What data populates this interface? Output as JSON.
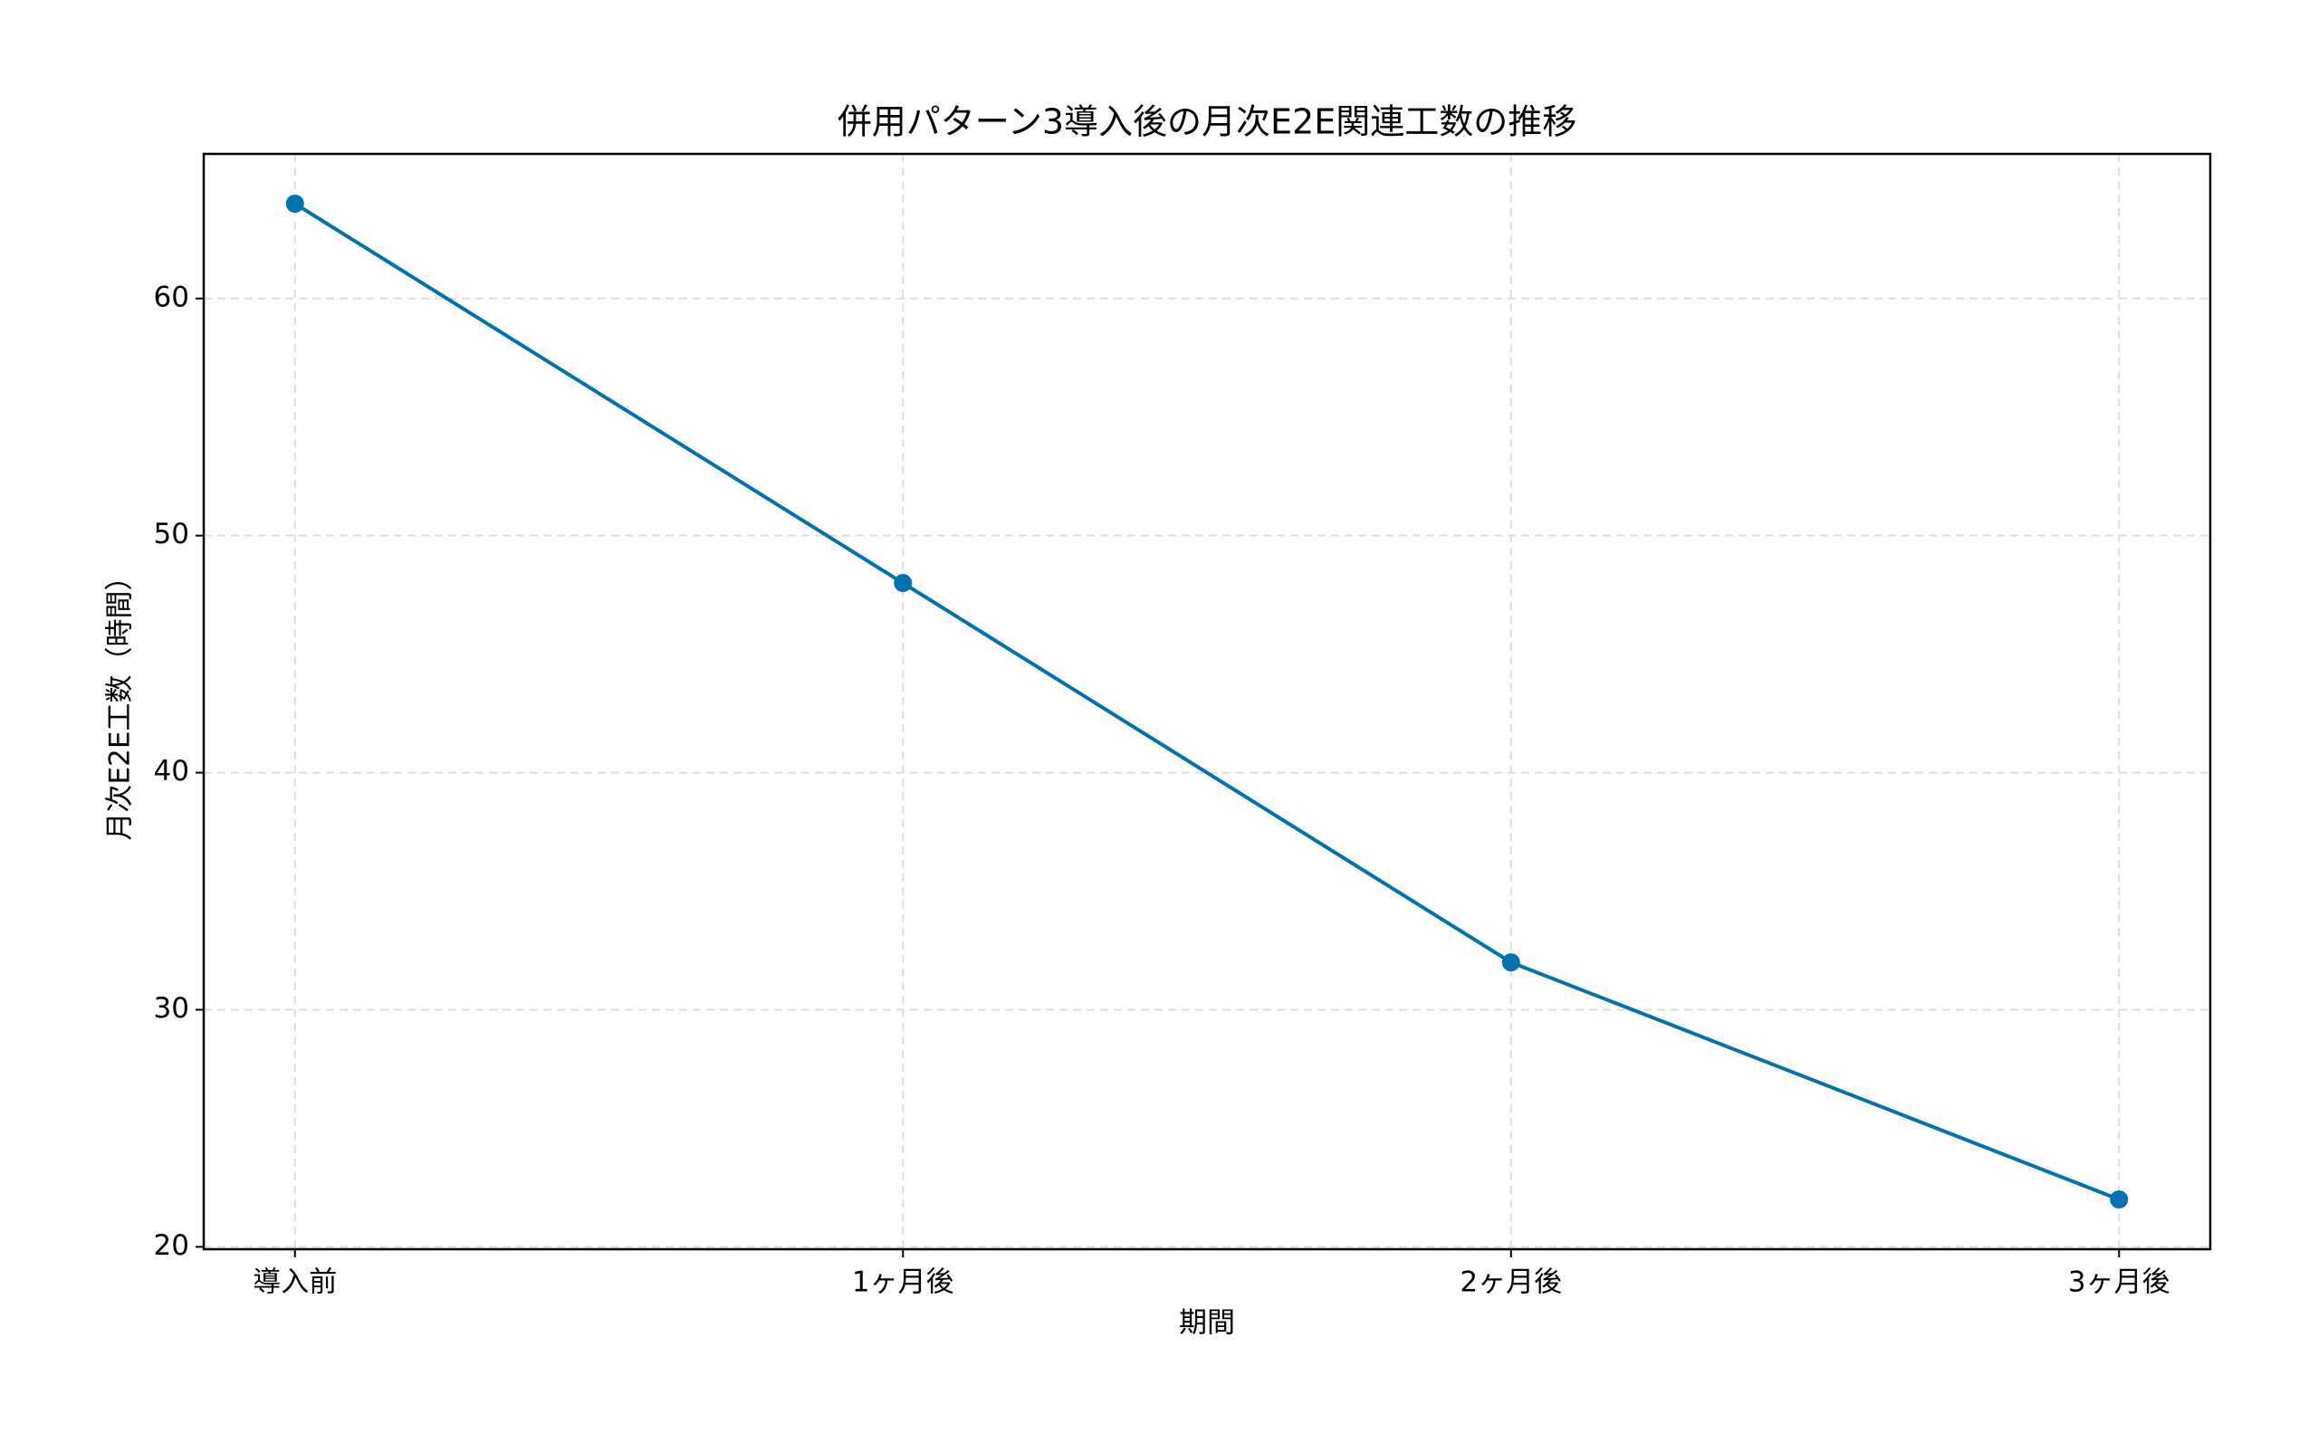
{
  "chart_data": {
    "type": "line",
    "title": "併用パターン3導入後の月次E2E関連工数の推移",
    "x_label": "期間",
    "y_label": "月次E2E工数（時間）",
    "categories": [
      "導入前",
      "1ヶ月後",
      "2ヶ月後",
      "3ヶ月後"
    ],
    "values": [
      64,
      48,
      32,
      22
    ],
    "color": "#0072b2",
    "ylim": [
      19.9,
      66.1
    ],
    "yticks": [
      20,
      30,
      40,
      50,
      60
    ],
    "grid": true
  }
}
